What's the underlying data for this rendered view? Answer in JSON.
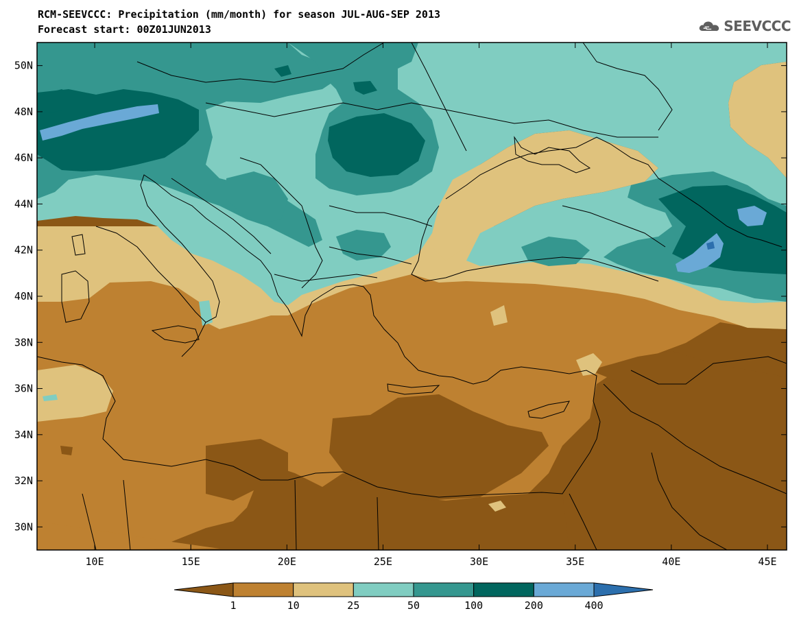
{
  "title": {
    "line1": "RCM-SEEVCCC: Precipitation (mm/month) for season JUL-AUG-SEP 2013",
    "line2": "Forecast start: 00Z01JUN2013"
  },
  "logo": {
    "icon": "cloud-icon",
    "text": "SEEVCCC"
  },
  "map": {
    "lon_range": [
      7,
      46
    ],
    "lat_range": [
      29,
      51
    ],
    "lat_ticks": [
      "50N",
      "48N",
      "46N",
      "44N",
      "42N",
      "40N",
      "38N",
      "36N",
      "34N",
      "32N",
      "30N"
    ],
    "lon_ticks": [
      "10E",
      "15E",
      "20E",
      "25E",
      "30E",
      "35E",
      "40E",
      "45E"
    ],
    "lat_tick_values": [
      50,
      48,
      46,
      44,
      42,
      40,
      38,
      36,
      34,
      32,
      30
    ],
    "lon_tick_values": [
      10,
      15,
      20,
      25,
      30,
      35,
      40,
      45
    ]
  },
  "legend": {
    "colors": [
      "#8b5716",
      "#be8131",
      "#dfc27d",
      "#80cdc1",
      "#35978f",
      "#01665e",
      "#6aa9d6",
      "#2c6fad"
    ],
    "labels": [
      "1",
      "10",
      "25",
      "50",
      "100",
      "200",
      "400"
    ]
  }
}
